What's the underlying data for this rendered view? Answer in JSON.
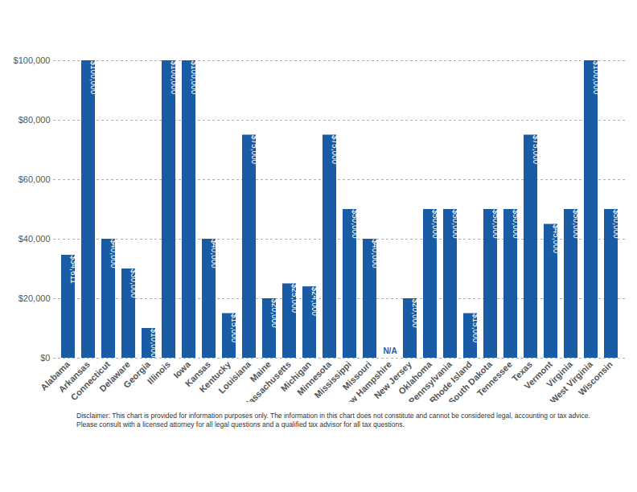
{
  "chart_data": {
    "type": "bar",
    "caption": "Disclaimer: This chart is provided for information purposes only. The information in this chart does not constitute and cannot be considered legal, accounting or tax advice. Please consult with a licensed attorney for all legal questions and a qualified tax advisor for all tax questions.",
    "categories": [
      "Alabama",
      "Arkansas",
      "Connecticut",
      "Delaware",
      "Georgia",
      "Illinois",
      "Iowa",
      "Kansas",
      "Kentucky",
      "Louisiana",
      "Maine",
      "Massachusetts",
      "Michigan",
      "Minnesota",
      "Mississippi",
      "Missouri",
      "New Hampshire",
      "New Jersey",
      "Oklahoma",
      "Pennsylvania",
      "Rhode Island",
      "South Dakota",
      "Tennessee",
      "Texas",
      "Vermont",
      "Virginia",
      "West Virginia",
      "Wisconsin"
    ],
    "values": [
      34611,
      100000,
      40000,
      30000,
      10000,
      100000,
      100000,
      40000,
      15000,
      75000,
      20000,
      25000,
      24000,
      75000,
      50000,
      40000,
      null,
      20000,
      50000,
      50000,
      15000,
      50000,
      50000,
      75000,
      45000,
      50000,
      100000,
      50000
    ],
    "value_labels": [
      "$34,611",
      "$100,000",
      "$40,000",
      "$30,000",
      "$10,000",
      "$100,000",
      "$100,000",
      "$40,000",
      "$15,000",
      "$75,000",
      "$20,000",
      "$25,000",
      "$24,000",
      "$75,000",
      "$50,000",
      "$40,000",
      "N/A",
      "$20,000",
      "$50,000",
      "$50,000",
      "$15,000",
      "$50,000",
      "$50,000",
      "$75,000",
      "$45,000",
      "$50,000",
      "$100,000",
      "$50,000"
    ],
    "color": "#1a5ba6",
    "ylim": [
      0,
      100000
    ],
    "yticks": [
      {
        "value": 0,
        "label": "$0"
      },
      {
        "value": 20000,
        "label": "$20,000"
      },
      {
        "value": 40000,
        "label": "$40,000"
      },
      {
        "value": 60000,
        "label": "$60,000"
      },
      {
        "value": 80000,
        "label": "$80,000"
      },
      {
        "value": 100000,
        "label": "$100,000"
      }
    ],
    "grid": true,
    "data_labels": true
  }
}
